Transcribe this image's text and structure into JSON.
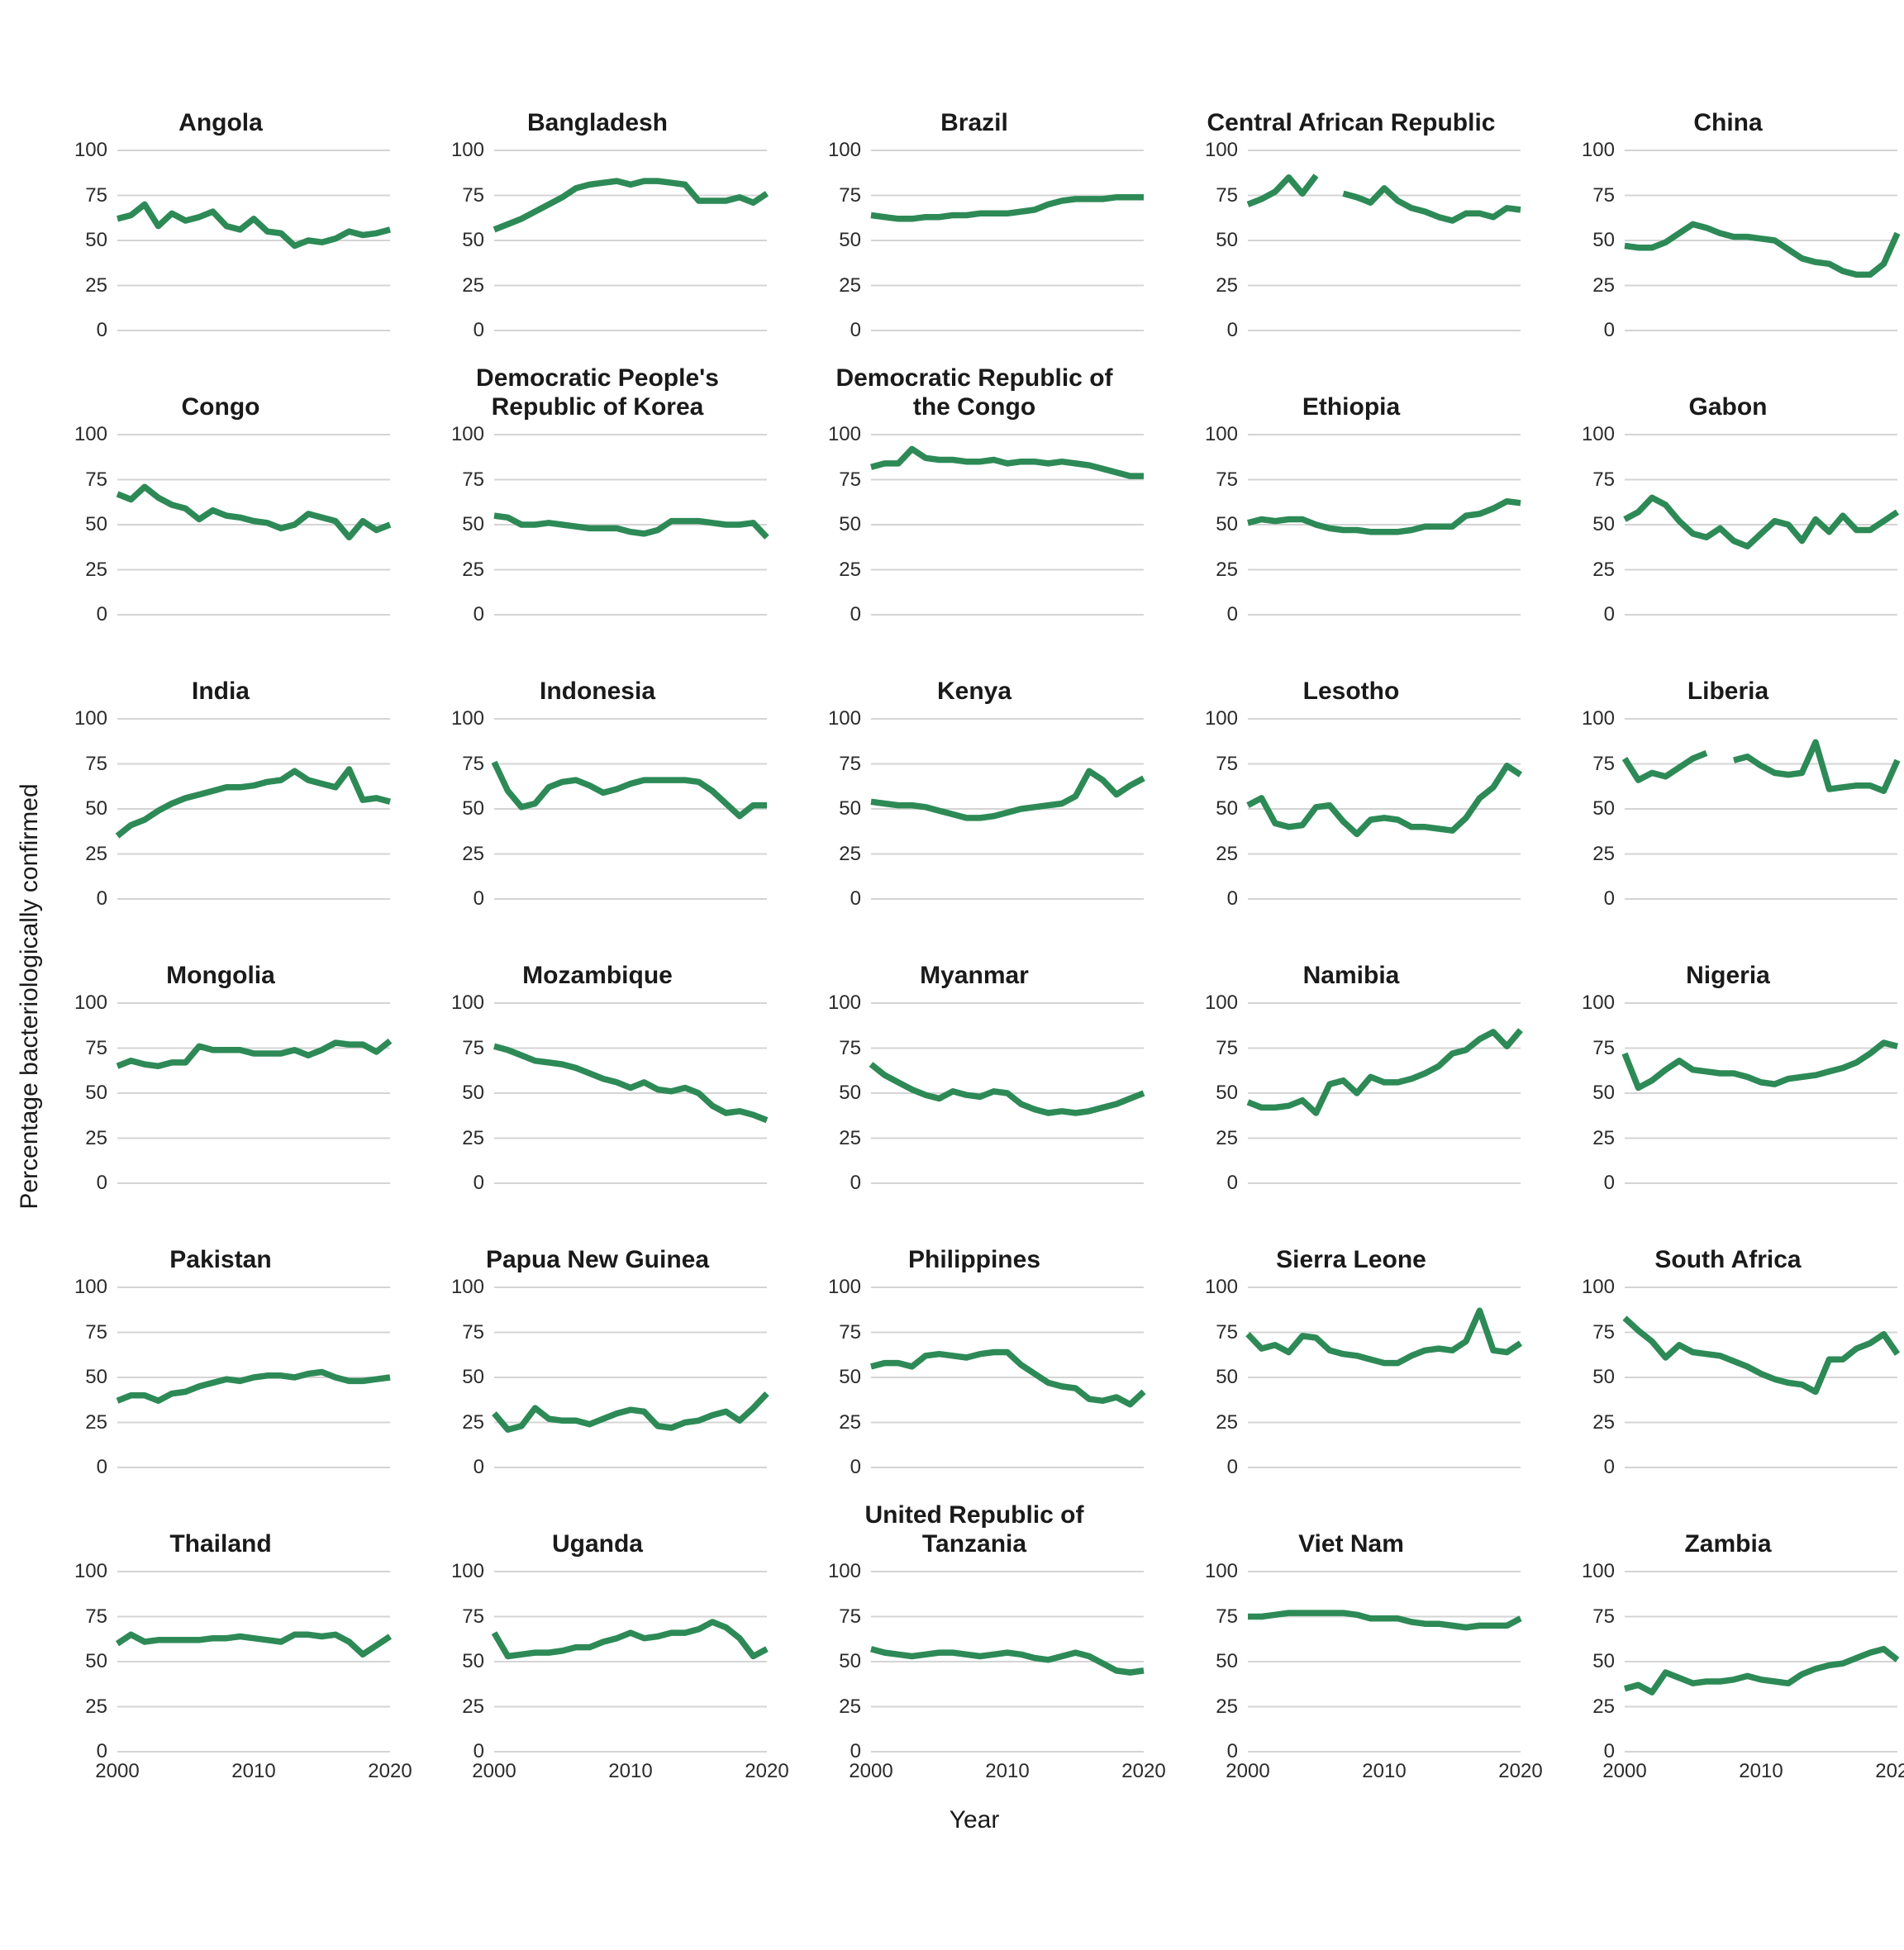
{
  "figure": {
    "y_axis_title": "Percentage bacteriologically confirmed",
    "x_axis_title": "Year",
    "line_color": "#2d8a56",
    "grid_color": "#d4d4d4",
    "title_color": "#1a1a1a",
    "tick_color": "#2b2b2b"
  },
  "chart_data": {
    "type": "line",
    "x": [
      2000,
      2001,
      2002,
      2003,
      2004,
      2005,
      2006,
      2007,
      2008,
      2009,
      2010,
      2011,
      2012,
      2013,
      2014,
      2015,
      2016,
      2017,
      2018,
      2019,
      2020
    ],
    "x_ticks": [
      2000,
      2010,
      2020
    ],
    "y_ticks": [
      0,
      25,
      50,
      75,
      100
    ],
    "xlim": [
      2000,
      2020
    ],
    "ylim": [
      0,
      100
    ],
    "xlabel": "Year",
    "ylabel": "Percentage bacteriologically confirmed",
    "grid": "horizontal-only",
    "legend": "none",
    "facet_layout": {
      "rows": 6,
      "cols": 5
    },
    "series": [
      {
        "name": "Angola",
        "values": [
          62,
          64,
          70,
          58,
          65,
          61,
          63,
          66,
          58,
          56,
          62,
          55,
          54,
          47,
          50,
          49,
          51,
          55,
          53,
          54,
          56
        ]
      },
      {
        "name": "Bangladesh",
        "values": [
          56,
          59,
          62,
          66,
          70,
          74,
          79,
          81,
          82,
          83,
          81,
          83,
          83,
          82,
          81,
          72,
          72,
          72,
          74,
          71,
          76
        ]
      },
      {
        "name": "Brazil",
        "values": [
          64,
          63,
          62,
          62,
          63,
          63,
          64,
          64,
          65,
          65,
          65,
          66,
          67,
          70,
          72,
          73,
          73,
          73,
          74,
          74,
          74
        ]
      },
      {
        "name": "Central African Republic",
        "values": [
          70,
          73,
          77,
          85,
          76,
          86,
          null,
          76,
          74,
          71,
          79,
          72,
          68,
          66,
          63,
          61,
          65,
          65,
          63,
          68,
          67
        ]
      },
      {
        "name": "China",
        "values": [
          47,
          46,
          46,
          49,
          54,
          59,
          57,
          54,
          52,
          52,
          51,
          50,
          45,
          40,
          38,
          37,
          33,
          31,
          31,
          37,
          54
        ]
      },
      {
        "name": "Congo",
        "values": [
          67,
          64,
          71,
          65,
          61,
          59,
          53,
          58,
          55,
          54,
          52,
          51,
          48,
          50,
          56,
          54,
          52,
          43,
          52,
          47,
          50
        ]
      },
      {
        "name": "Democratic People's Republic of Korea",
        "values": [
          55,
          54,
          50,
          50,
          51,
          50,
          49,
          48,
          48,
          48,
          46,
          45,
          47,
          52,
          52,
          52,
          51,
          50,
          50,
          51,
          43
        ]
      },
      {
        "name": "Democratic Republic of the Congo",
        "values": [
          82,
          84,
          84,
          92,
          87,
          86,
          86,
          85,
          85,
          86,
          84,
          85,
          85,
          84,
          85,
          84,
          83,
          81,
          79,
          77,
          77
        ]
      },
      {
        "name": "Ethiopia",
        "values": [
          51,
          53,
          52,
          53,
          53,
          50,
          48,
          47,
          47,
          46,
          46,
          46,
          47,
          49,
          49,
          49,
          55,
          56,
          59,
          63,
          62
        ]
      },
      {
        "name": "Gabon",
        "values": [
          53,
          57,
          65,
          61,
          52,
          45,
          43,
          48,
          41,
          38,
          45,
          52,
          50,
          41,
          53,
          46,
          55,
          47,
          47,
          52,
          57
        ]
      },
      {
        "name": "India",
        "values": [
          35,
          41,
          44,
          49,
          53,
          56,
          58,
          60,
          62,
          62,
          63,
          65,
          66,
          71,
          66,
          64,
          62,
          72,
          55,
          56,
          54
        ]
      },
      {
        "name": "Indonesia",
        "values": [
          76,
          60,
          51,
          53,
          62,
          65,
          66,
          63,
          59,
          61,
          64,
          66,
          66,
          66,
          66,
          65,
          60,
          53,
          46,
          52,
          52
        ]
      },
      {
        "name": "Kenya",
        "values": [
          54,
          53,
          52,
          52,
          51,
          49,
          47,
          45,
          45,
          46,
          48,
          50,
          51,
          52,
          53,
          57,
          71,
          66,
          58,
          63,
          67
        ]
      },
      {
        "name": "Lesotho",
        "values": [
          52,
          56,
          42,
          40,
          41,
          51,
          52,
          43,
          36,
          44,
          45,
          44,
          40,
          40,
          39,
          38,
          45,
          56,
          62,
          74,
          69
        ]
      },
      {
        "name": "Liberia",
        "values": [
          78,
          66,
          70,
          68,
          73,
          78,
          81,
          null,
          77,
          79,
          74,
          70,
          69,
          70,
          87,
          61,
          62,
          63,
          63,
          60,
          77
        ]
      },
      {
        "name": "Mongolia",
        "values": [
          65,
          68,
          66,
          65,
          67,
          67,
          76,
          74,
          74,
          74,
          72,
          72,
          72,
          74,
          71,
          74,
          78,
          77,
          77,
          73,
          79
        ]
      },
      {
        "name": "Mozambique",
        "values": [
          76,
          74,
          71,
          68,
          67,
          66,
          64,
          61,
          58,
          56,
          53,
          56,
          52,
          51,
          53,
          50,
          43,
          39,
          40,
          38,
          35
        ]
      },
      {
        "name": "Myanmar",
        "values": [
          66,
          60,
          56,
          52,
          49,
          47,
          51,
          49,
          48,
          51,
          50,
          44,
          41,
          39,
          40,
          39,
          40,
          42,
          44,
          47,
          50
        ]
      },
      {
        "name": "Namibia",
        "values": [
          45,
          42,
          42,
          43,
          46,
          39,
          55,
          57,
          50,
          59,
          56,
          56,
          58,
          61,
          65,
          72,
          74,
          80,
          84,
          76,
          85
        ]
      },
      {
        "name": "Nigeria",
        "values": [
          72,
          53,
          57,
          63,
          68,
          63,
          62,
          61,
          61,
          59,
          56,
          55,
          58,
          59,
          60,
          62,
          64,
          67,
          72,
          78,
          76
        ]
      },
      {
        "name": "Pakistan",
        "values": [
          37,
          40,
          40,
          37,
          41,
          42,
          45,
          47,
          49,
          48,
          50,
          51,
          51,
          50,
          52,
          53,
          50,
          48,
          48,
          49,
          50
        ]
      },
      {
        "name": "Papua New Guinea",
        "values": [
          30,
          21,
          23,
          33,
          27,
          26,
          26,
          24,
          27,
          30,
          32,
          31,
          23,
          22,
          25,
          26,
          29,
          31,
          26,
          33,
          41
        ]
      },
      {
        "name": "Philippines",
        "values": [
          56,
          58,
          58,
          56,
          62,
          63,
          62,
          61,
          63,
          64,
          64,
          57,
          52,
          47,
          45,
          44,
          38,
          37,
          39,
          35,
          42
        ]
      },
      {
        "name": "Sierra Leone",
        "values": [
          74,
          66,
          68,
          64,
          73,
          72,
          65,
          63,
          62,
          60,
          58,
          58,
          62,
          65,
          66,
          65,
          70,
          87,
          65,
          64,
          69
        ]
      },
      {
        "name": "South Africa",
        "values": [
          83,
          76,
          70,
          61,
          68,
          64,
          63,
          62,
          59,
          56,
          52,
          49,
          47,
          46,
          42,
          60,
          60,
          66,
          69,
          74,
          63
        ]
      },
      {
        "name": "Thailand",
        "values": [
          60,
          65,
          61,
          62,
          62,
          62,
          62,
          63,
          63,
          64,
          63,
          62,
          61,
          65,
          65,
          64,
          65,
          61,
          54,
          59,
          64
        ]
      },
      {
        "name": "Uganda",
        "values": [
          66,
          53,
          54,
          55,
          55,
          56,
          58,
          58,
          61,
          63,
          66,
          63,
          64,
          66,
          66,
          68,
          72,
          69,
          63,
          53,
          57
        ]
      },
      {
        "name": "United Republic of Tanzania",
        "values": [
          57,
          55,
          54,
          53,
          54,
          55,
          55,
          54,
          53,
          54,
          55,
          54,
          52,
          51,
          53,
          55,
          53,
          49,
          45,
          44,
          45
        ]
      },
      {
        "name": "Viet Nam",
        "values": [
          75,
          75,
          76,
          77,
          77,
          77,
          77,
          77,
          76,
          74,
          74,
          74,
          72,
          71,
          71,
          70,
          69,
          70,
          70,
          70,
          74
        ]
      },
      {
        "name": "Zambia",
        "values": [
          35,
          37,
          33,
          44,
          41,
          38,
          39,
          39,
          40,
          42,
          40,
          39,
          38,
          43,
          46,
          48,
          49,
          52,
          55,
          57,
          51
        ]
      }
    ]
  }
}
